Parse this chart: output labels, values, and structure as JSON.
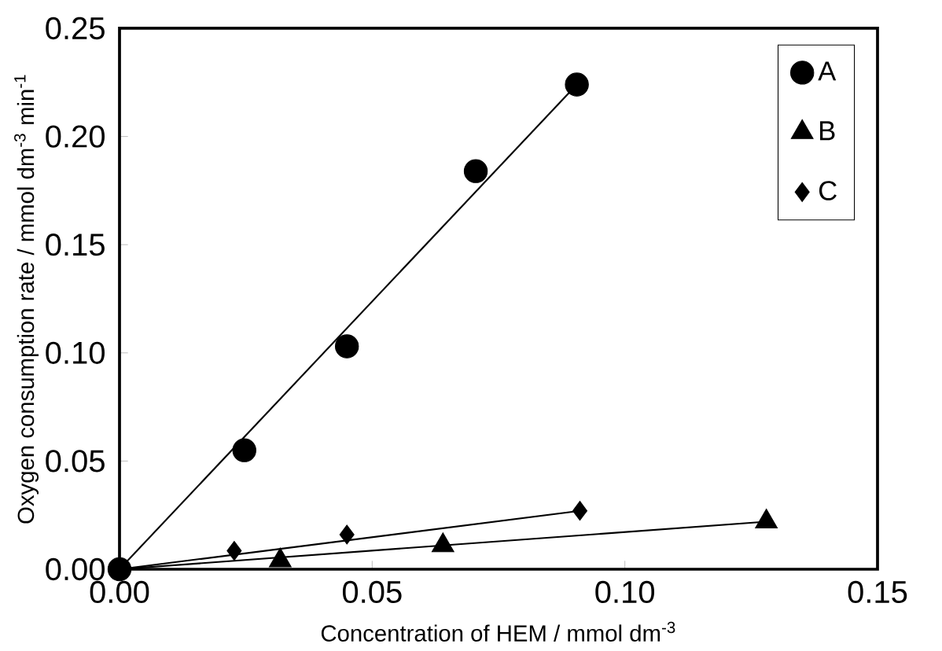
{
  "chart_data": {
    "type": "scatter",
    "xlabel": "Concentration of HEM / mmol dm$^{-3}$",
    "ylabel": "Oxygen consumption rate / mmol dm$^{-3}$ min$^{-1}$",
    "xlim": [
      0,
      0.15
    ],
    "ylim": [
      0,
      0.25
    ],
    "xticks": [
      {
        "value": 0,
        "label": "0.00"
      },
      {
        "value": 0.05,
        "label": "0.05"
      },
      {
        "value": 0.1,
        "label": "0.10"
      },
      {
        "value": 0.15,
        "label": "0.15"
      }
    ],
    "yticks": [
      {
        "value": 0,
        "label": "0.00"
      },
      {
        "value": 0.05,
        "label": "0.05"
      },
      {
        "value": 0.1,
        "label": "0.10"
      },
      {
        "value": 0.15,
        "label": "0.15"
      },
      {
        "value": 0.2,
        "label": "0.20"
      },
      {
        "value": 0.25,
        "label": "0.25"
      }
    ],
    "grid": false,
    "legend": "top right",
    "series": [
      {
        "name": "A",
        "marker": "circle",
        "color": "#000000",
        "x": [
          0,
          0.0247,
          0.045,
          0.0705,
          0.0905
        ],
        "values": [
          0,
          0.055,
          0.103,
          0.184,
          0.224
        ]
      },
      {
        "name": "B",
        "marker": "triangle",
        "color": "#000000",
        "x": [
          0.0318,
          0.064,
          0.128
        ],
        "values": [
          0.004,
          0.011,
          0.022
        ]
      },
      {
        "name": "C",
        "marker": "diamond",
        "color": "#000000",
        "x": [
          0.0227,
          0.045,
          0.0911
        ],
        "values": [
          0.0085,
          0.016,
          0.027
        ]
      },
      {
        "type": "line",
        "marker": "none",
        "color": "#000000",
        "x": [
          0,
          0.0905
        ],
        "values": [
          0,
          0.224
        ]
      },
      {
        "type": "line",
        "marker": "none",
        "color": "#000000",
        "x": [
          0,
          0.128
        ],
        "values": [
          0,
          0.022
        ]
      },
      {
        "type": "line",
        "marker": "none",
        "color": "#000000",
        "x": [
          0,
          0.0911
        ],
        "values": [
          0,
          0.027
        ]
      }
    ]
  }
}
